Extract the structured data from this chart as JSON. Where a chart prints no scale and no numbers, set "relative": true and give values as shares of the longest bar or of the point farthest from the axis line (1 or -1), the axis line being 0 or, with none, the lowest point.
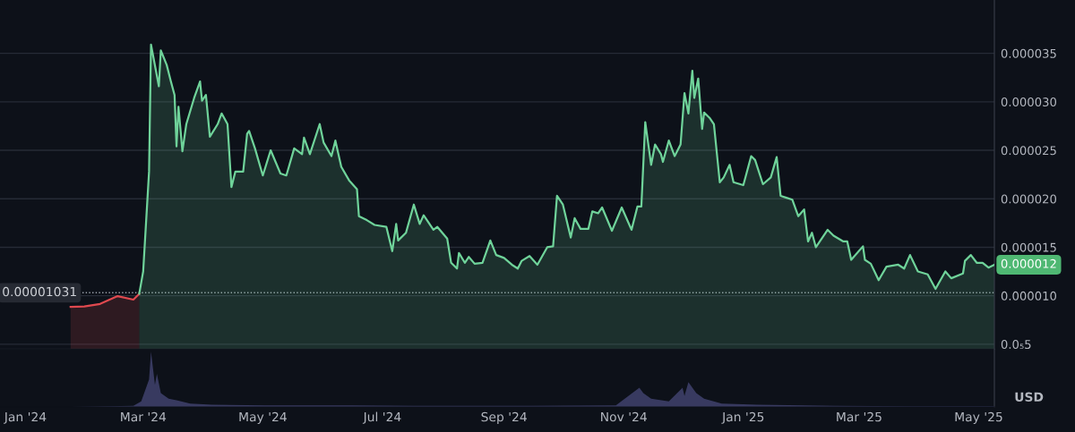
{
  "chart_data": [
    {
      "type": "area",
      "grid": "y",
      "tick_labels": "y",
      "xlim": [
        "2023-12-19",
        "2025-05-09"
      ],
      "ylim": [
        4.5e-06,
        4.05e-05
      ],
      "yticks": [
        {
          "value": 5e-06,
          "label": "0.0₅5"
        },
        {
          "value": 1e-05,
          "label": "0.000010"
        },
        {
          "value": 1.5e-05,
          "label": "0.000015"
        },
        {
          "value": 2e-05,
          "label": "0.000020"
        },
        {
          "value": 2.5e-05,
          "label": "0.000025"
        },
        {
          "value": 3e-05,
          "label": "0.000030"
        },
        {
          "value": 3.5e-05,
          "label": "0.000035"
        }
      ],
      "ref_lines": [
        {
          "axis": "y",
          "value": 1.031e-05,
          "label": "0.00001031",
          "color": "#9aa0aa",
          "line_style": "dotted"
        }
      ],
      "annotations": [
        {
          "text": "0.000012",
          "x": "2025-05-09",
          "y": 1.32e-05
        }
      ],
      "series": [
        {
          "color": "#e0494f",
          "x": [
            "2024-01-24",
            "2024-01-31",
            "2024-02-08",
            "2024-02-17",
            "2024-02-25",
            "2024-02-28"
          ],
          "values": [
            8.85e-06,
            8.9e-06,
            9.15e-06,
            9.96e-06,
            9.6e-06,
            1.02e-05
          ]
        },
        {
          "color": "#6fd39a",
          "x": [
            "2024-02-28",
            "2024-03-01",
            "2024-03-04",
            "2024-03-05",
            "2024-03-09",
            "2024-03-10",
            "2024-03-13",
            "2024-03-15",
            "2024-03-17",
            "2024-03-18",
            "2024-03-19",
            "2024-03-21",
            "2024-03-23",
            "2024-03-27",
            "2024-03-30",
            "2024-03-31",
            "2024-04-02",
            "2024-04-04",
            "2024-04-08",
            "2024-04-10",
            "2024-04-13",
            "2024-04-15",
            "2024-04-17",
            "2024-04-21",
            "2024-04-23",
            "2024-04-24",
            "2024-04-27",
            "2024-05-01",
            "2024-05-05",
            "2024-05-10",
            "2024-05-13",
            "2024-05-17",
            "2024-05-21",
            "2024-05-22",
            "2024-05-25",
            "2024-05-30",
            "2024-06-01",
            "2024-06-05",
            "2024-06-07",
            "2024-06-10",
            "2024-06-14",
            "2024-06-18",
            "2024-06-19",
            "2024-06-23",
            "2024-06-27",
            "2024-07-03",
            "2024-07-06",
            "2024-07-08",
            "2024-07-09",
            "2024-07-13",
            "2024-07-17",
            "2024-07-20",
            "2024-07-22",
            "2024-07-27",
            "2024-07-29",
            "2024-08-03",
            "2024-08-05",
            "2024-08-08",
            "2024-08-09",
            "2024-08-12",
            "2024-08-14",
            "2024-08-17",
            "2024-08-21",
            "2024-08-25",
            "2024-08-28",
            "2024-09-01",
            "2024-09-05",
            "2024-09-08",
            "2024-09-10",
            "2024-09-14",
            "2024-09-18",
            "2024-09-23",
            "2024-09-26",
            "2024-09-28",
            "2024-10-01",
            "2024-10-05",
            "2024-10-07",
            "2024-10-10",
            "2024-10-14",
            "2024-10-16",
            "2024-10-19",
            "2024-10-21",
            "2024-10-26",
            "2024-10-31",
            "2024-11-05",
            "2024-11-08",
            "2024-11-10",
            "2024-11-12",
            "2024-11-15",
            "2024-11-17",
            "2024-11-20",
            "2024-11-21",
            "2024-11-24",
            "2024-11-27",
            "2024-11-30",
            "2024-12-02",
            "2024-12-04",
            "2024-12-06",
            "2024-12-07",
            "2024-12-09",
            "2024-12-11",
            "2024-12-12",
            "2024-12-15",
            "2024-12-17",
            "2024-12-20",
            "2024-12-22",
            "2024-12-25",
            "2024-12-27",
            "2025-01-01",
            "2025-01-05",
            "2025-01-07",
            "2025-01-11",
            "2025-01-15",
            "2025-01-18",
            "2025-01-20",
            "2025-01-23",
            "2025-01-26",
            "2025-01-29",
            "2025-02-01",
            "2025-02-03",
            "2025-02-05",
            "2025-02-07",
            "2025-02-10",
            "2025-02-13",
            "2025-02-16",
            "2025-02-21",
            "2025-02-23",
            "2025-02-25",
            "2025-03-03",
            "2025-03-04",
            "2025-03-07",
            "2025-03-11",
            "2025-03-15",
            "2025-03-21",
            "2025-03-24",
            "2025-03-27",
            "2025-03-31",
            "2025-04-05",
            "2025-04-09",
            "2025-04-14",
            "2025-04-17",
            "2025-04-23",
            "2025-04-24",
            "2025-04-27",
            "2025-04-30",
            "2025-05-03",
            "2025-05-06",
            "2025-05-09"
          ],
          "values": [
            1.02e-05,
            1.25e-05,
            2.28e-05,
            3.59e-05,
            3.16e-05,
            3.53e-05,
            3.38e-05,
            3.22e-05,
            3.07e-05,
            2.54e-05,
            2.95e-05,
            2.49e-05,
            2.77e-05,
            3.04e-05,
            3.21e-05,
            3.01e-05,
            3.07e-05,
            2.64e-05,
            2.77e-05,
            2.88e-05,
            2.77e-05,
            2.12e-05,
            2.28e-05,
            2.28e-05,
            2.67e-05,
            2.7e-05,
            2.52e-05,
            2.24e-05,
            2.5e-05,
            2.26e-05,
            2.24e-05,
            2.52e-05,
            2.46e-05,
            2.63e-05,
            2.46e-05,
            2.77e-05,
            2.58e-05,
            2.44e-05,
            2.6e-05,
            2.33e-05,
            2.19e-05,
            2.1e-05,
            1.82e-05,
            1.78e-05,
            1.73e-05,
            1.71e-05,
            1.46e-05,
            1.74e-05,
            1.57e-05,
            1.65e-05,
            1.94e-05,
            1.74e-05,
            1.83e-05,
            1.68e-05,
            1.71e-05,
            1.59e-05,
            1.34e-05,
            1.28e-05,
            1.44e-05,
            1.34e-05,
            1.4e-05,
            1.33e-05,
            1.34e-05,
            1.57e-05,
            1.42e-05,
            1.39e-05,
            1.32e-05,
            1.28e-05,
            1.36e-05,
            1.41e-05,
            1.32e-05,
            1.5e-05,
            1.51e-05,
            2.03e-05,
            1.94e-05,
            1.6e-05,
            1.8e-05,
            1.69e-05,
            1.69e-05,
            1.87e-05,
            1.85e-05,
            1.91e-05,
            1.67e-05,
            1.91e-05,
            1.68e-05,
            1.92e-05,
            1.92e-05,
            2.79e-05,
            2.35e-05,
            2.56e-05,
            2.46e-05,
            2.38e-05,
            2.6e-05,
            2.44e-05,
            2.56e-05,
            3.09e-05,
            2.88e-05,
            3.32e-05,
            3.04e-05,
            3.24e-05,
            2.72e-05,
            2.89e-05,
            2.83e-05,
            2.77e-05,
            2.17e-05,
            2.22e-05,
            2.35e-05,
            2.17e-05,
            2.14e-05,
            2.44e-05,
            2.4e-05,
            2.15e-05,
            2.22e-05,
            2.43e-05,
            2.03e-05,
            2.01e-05,
            1.99e-05,
            1.82e-05,
            1.89e-05,
            1.56e-05,
            1.65e-05,
            1.5e-05,
            1.59e-05,
            1.68e-05,
            1.62e-05,
            1.56e-05,
            1.56e-05,
            1.37e-05,
            1.51e-05,
            1.37e-05,
            1.33e-05,
            1.16e-05,
            1.3e-05,
            1.32e-05,
            1.28e-05,
            1.42e-05,
            1.25e-05,
            1.22e-05,
            1.07e-05,
            1.25e-05,
            1.18e-05,
            1.23e-05,
            1.36e-05,
            1.42e-05,
            1.34e-05,
            1.34e-05,
            1.29e-05,
            1.32e-05
          ]
        }
      ]
    },
    {
      "type": "area",
      "relative": true,
      "tick_labels": "x",
      "xlim": [
        "2023-12-19",
        "2025-05-09"
      ],
      "xticks": [
        {
          "value": "2024-01-01",
          "label": "Jan '24"
        },
        {
          "value": "2024-03-01",
          "label": "Mar '24"
        },
        {
          "value": "2024-05-01",
          "label": "May '24"
        },
        {
          "value": "2024-07-01",
          "label": "Jul '24"
        },
        {
          "value": "2024-09-01",
          "label": "Sep '24"
        },
        {
          "value": "2024-11-01",
          "label": "Nov '24"
        },
        {
          "value": "2025-01-01",
          "label": "Jan '25"
        },
        {
          "value": "2025-03-01",
          "label": "Mar '25"
        },
        {
          "value": "2025-05-01",
          "label": "May '25"
        }
      ],
      "annotations": [
        "USD"
      ],
      "series": [
        {
          "color": "#3d3f68",
          "x": [
            "2024-01-24",
            "2024-02-25",
            "2024-02-29",
            "2024-03-02",
            "2024-03-04",
            "2024-03-05",
            "2024-03-07",
            "2024-03-08",
            "2024-03-10",
            "2024-03-14",
            "2024-03-18",
            "2024-03-25",
            "2024-04-05",
            "2024-05-02",
            "2024-06-15",
            "2024-07-17",
            "2024-09-14",
            "2024-10-28",
            "2024-11-09",
            "2024-11-11",
            "2024-11-15",
            "2024-11-24",
            "2024-12-01",
            "2024-12-02",
            "2024-12-04",
            "2024-12-08",
            "2024-12-12",
            "2024-12-21",
            "2025-01-08",
            "2025-02-17",
            "2025-04-04",
            "2025-05-09"
          ],
          "values": [
            0.0,
            0.02,
            0.1,
            0.3,
            0.5,
            1.0,
            0.4,
            0.6,
            0.25,
            0.15,
            0.12,
            0.06,
            0.04,
            0.03,
            0.03,
            0.02,
            0.02,
            0.03,
            0.35,
            0.25,
            0.15,
            0.1,
            0.35,
            0.2,
            0.45,
            0.25,
            0.15,
            0.06,
            0.04,
            0.02,
            0.01,
            0.01
          ]
        }
      ]
    }
  ]
}
